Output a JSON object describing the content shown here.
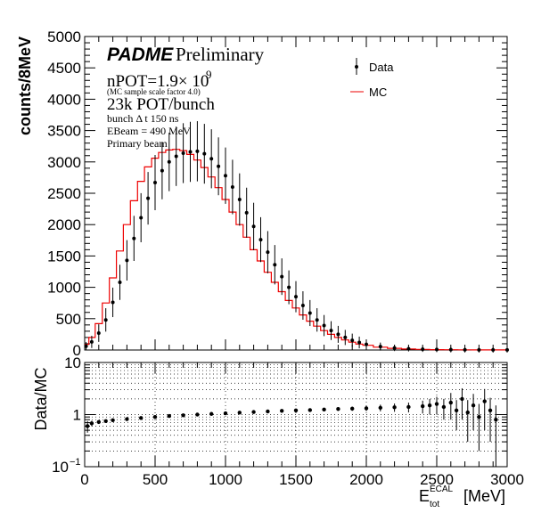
{
  "chart_data": [
    {
      "type": "line",
      "ylabel": "counts/8MeV",
      "xlim": [
        0,
        3000
      ],
      "ylim": [
        0,
        5000
      ],
      "y_ticks": [
        0,
        500,
        1000,
        1500,
        2000,
        2500,
        3000,
        3500,
        4000,
        4500,
        5000
      ],
      "legend": {
        "position": "top-right",
        "entries": [
          "Data",
          "MC"
        ]
      },
      "annotations": {
        "logo": "PADME",
        "logo_suffix": "Preliminary",
        "npot": "nPOT=1.9× 10",
        "npot_exp": "9",
        "mc_scale": "(MC sample scale factor 4.0)",
        "pot_bunch": "23k POT/bunch",
        "bunch_dt": "bunch Δ t 150 ns",
        "ebeam": "EBeam = 490 MeV",
        "beam": "Primary beam"
      },
      "series": [
        {
          "name": "Data",
          "color": "#000000",
          "marker": "point-with-errorbars",
          "x": [
            10,
            50,
            100,
            150,
            200,
            250,
            300,
            350,
            400,
            450,
            500,
            550,
            600,
            650,
            700,
            750,
            800,
            850,
            900,
            950,
            1000,
            1050,
            1100,
            1150,
            1200,
            1250,
            1300,
            1350,
            1400,
            1450,
            1500,
            1550,
            1600,
            1650,
            1700,
            1750,
            1800,
            1850,
            1900,
            1950,
            2000,
            2100,
            2200,
            2300,
            2400,
            2500,
            2600,
            2700,
            2800,
            2900,
            3000
          ],
          "y": [
            60,
            130,
            270,
            480,
            760,
            1080,
            1430,
            1780,
            2110,
            2420,
            2670,
            2860,
            3000,
            3090,
            3140,
            3160,
            3170,
            3130,
            3050,
            2930,
            2780,
            2600,
            2400,
            2190,
            1970,
            1760,
            1560,
            1360,
            1170,
            1000,
            850,
            710,
            590,
            480,
            390,
            310,
            250,
            200,
            155,
            120,
            90,
            55,
            32,
            20,
            12,
            8,
            5,
            3,
            2,
            1,
            1
          ]
        },
        {
          "name": "MC",
          "color": "#ee0000",
          "marker": "step",
          "x": [
            10,
            50,
            100,
            150,
            200,
            250,
            300,
            350,
            400,
            450,
            500,
            550,
            600,
            650,
            700,
            750,
            800,
            850,
            900,
            950,
            1000,
            1050,
            1100,
            1150,
            1200,
            1250,
            1300,
            1350,
            1400,
            1450,
            1500,
            1550,
            1600,
            1650,
            1700,
            1750,
            1800,
            1850,
            1900,
            1950,
            2000,
            2100,
            2200,
            2300,
            2400,
            2500,
            2600,
            2700,
            2800,
            2900,
            3000
          ],
          "y": [
            90,
            200,
            420,
            750,
            1150,
            1580,
            2000,
            2380,
            2690,
            2920,
            3060,
            3150,
            3190,
            3200,
            3180,
            3120,
            3030,
            2910,
            2760,
            2590,
            2400,
            2200,
            2000,
            1800,
            1600,
            1420,
            1240,
            1080,
            930,
            790,
            670,
            560,
            460,
            380,
            310,
            250,
            200,
            160,
            125,
            95,
            75,
            45,
            27,
            16,
            10,
            6,
            4,
            3,
            2,
            1,
            1
          ]
        }
      ]
    },
    {
      "type": "scatter",
      "xlabel_main": "E",
      "xlabel_sup": "ECAL",
      "xlabel_sub": "tot",
      "xlabel_unit": "[MeV]",
      "ylabel": "Data/MC",
      "xlim": [
        0,
        3000
      ],
      "ylim": [
        0.1,
        10
      ],
      "y_scale": "log",
      "x_ticks": [
        0,
        500,
        1000,
        1500,
        2000,
        2500,
        3000
      ],
      "y_tick_labels": [
        {
          "value": 0.1,
          "base": "10",
          "exp": "−1"
        },
        {
          "value": 1,
          "base": "1",
          "exp": ""
        },
        {
          "value": 10,
          "base": "10",
          "exp": ""
        }
      ],
      "grid": true,
      "series": [
        {
          "name": "Data/MC",
          "color": "#000000",
          "x": [
            20,
            50,
            100,
            150,
            200,
            300,
            400,
            500,
            600,
            700,
            800,
            900,
            1000,
            1100,
            1200,
            1300,
            1400,
            1500,
            1600,
            1700,
            1800,
            1900,
            2000,
            2100,
            2200,
            2300,
            2400,
            2450,
            2500,
            2550,
            2600,
            2640,
            2680,
            2720,
            2760,
            2800,
            2840,
            2880,
            2920
          ],
          "y": [
            0.6,
            0.68,
            0.72,
            0.75,
            0.78,
            0.82,
            0.86,
            0.9,
            0.94,
            0.97,
            1.0,
            1.03,
            1.06,
            1.09,
            1.12,
            1.15,
            1.18,
            1.2,
            1.22,
            1.25,
            1.28,
            1.3,
            1.32,
            1.35,
            1.38,
            1.4,
            1.45,
            1.5,
            1.6,
            1.4,
            1.7,
            1.2,
            2.0,
            1.1,
            1.5,
            0.9,
            1.8,
            1.2,
            0.8
          ],
          "yerr": [
            0.15,
            0.08,
            0.06,
            0.05,
            0.04,
            0.03,
            0.03,
            0.03,
            0.03,
            0.03,
            0.03,
            0.03,
            0.03,
            0.04,
            0.04,
            0.05,
            0.05,
            0.06,
            0.07,
            0.08,
            0.1,
            0.12,
            0.15,
            0.2,
            0.25,
            0.3,
            0.4,
            0.5,
            0.6,
            0.6,
            0.9,
            0.7,
            1.2,
            0.8,
            1.0,
            0.7,
            1.3,
            0.9,
            0.7
          ]
        }
      ]
    }
  ]
}
